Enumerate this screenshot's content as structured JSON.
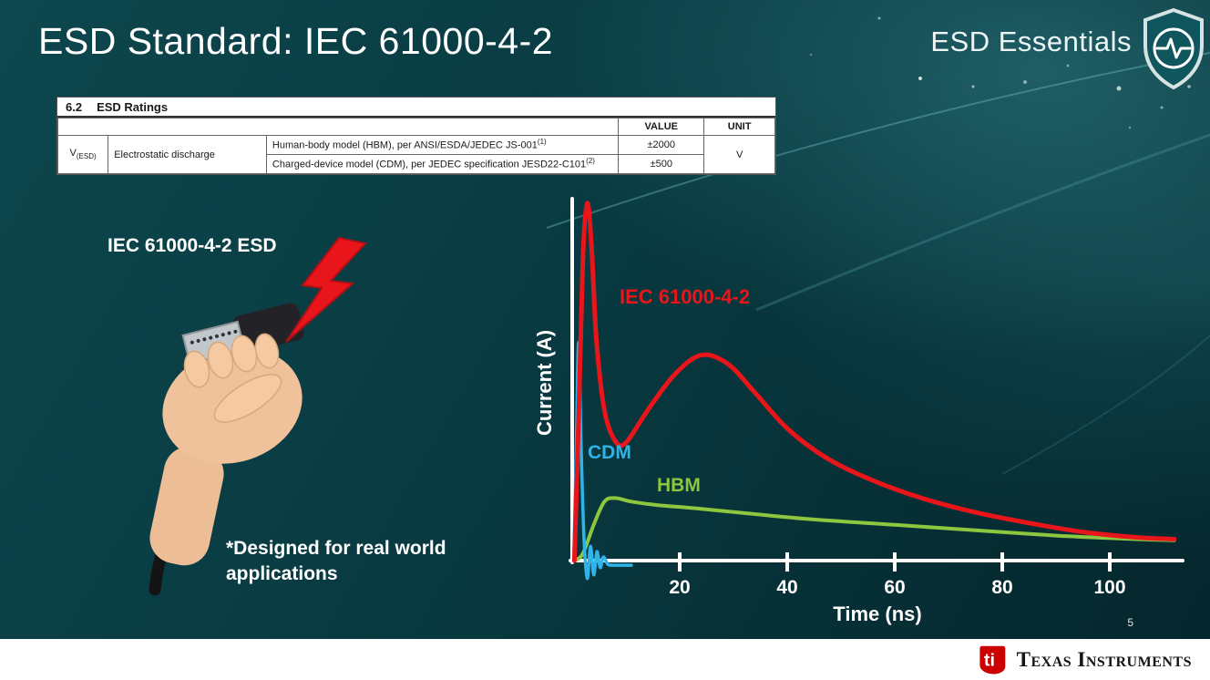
{
  "slide": {
    "title": "ESD Standard: IEC 61000-4-2",
    "series_label": "ESD Essentials",
    "page_number": "5"
  },
  "ratings_table": {
    "section": "6.2",
    "section_title": "ESD Ratings",
    "columns": {
      "value": "VALUE",
      "unit": "UNIT"
    },
    "param": {
      "symbol": "V",
      "subscript": "(ESD)",
      "name": "Electrostatic discharge"
    },
    "rows": [
      {
        "condition": "Human-body model (HBM), per ANSI/ESDA/JEDEC JS-001",
        "footnote_ref": "(1)",
        "value": "±2000"
      },
      {
        "condition": "Charged-device model (CDM), per JEDEC specification JESD22-C101",
        "footnote_ref": "(2)",
        "value": "±500"
      }
    ],
    "unit": "V"
  },
  "illustration": {
    "label": "IEC 61000-4-2 ESD",
    "footnote": "*Designed for real world applications"
  },
  "chart_data": {
    "type": "line",
    "title": "",
    "xlabel": "Time (ns)",
    "ylabel": "Current (A)",
    "x_ticks": [
      20,
      40,
      60,
      80,
      100
    ],
    "xlim": [
      0,
      113
    ],
    "ylim": [
      -8,
      105
    ],
    "y_scale": "relative amplitude (no y tick labels shown)",
    "grid": false,
    "legend": "inline labels on curves",
    "series": [
      {
        "name": "IEC 61000-4-2",
        "color": "#e8151b",
        "width": 5,
        "points": [
          [
            0.4,
            0
          ],
          [
            1.2,
            40
          ],
          [
            2,
            85
          ],
          [
            2.8,
            100
          ],
          [
            3.6,
            88
          ],
          [
            4.5,
            62
          ],
          [
            6,
            42
          ],
          [
            8,
            33.5
          ],
          [
            10,
            33
          ],
          [
            14,
            42
          ],
          [
            19,
            52
          ],
          [
            24,
            57.5
          ],
          [
            29,
            55
          ],
          [
            34,
            47
          ],
          [
            40,
            37
          ],
          [
            47,
            29
          ],
          [
            55,
            23
          ],
          [
            65,
            17.5
          ],
          [
            75,
            13.5
          ],
          [
            85,
            10.5
          ],
          [
            95,
            8
          ],
          [
            105,
            6.5
          ],
          [
            112,
            6
          ]
        ]
      },
      {
        "name": "CDM",
        "color": "#2fb4e9",
        "width": 3.5,
        "points": [
          [
            0.3,
            0
          ],
          [
            0.8,
            35
          ],
          [
            1.2,
            61
          ],
          [
            1.7,
            30
          ],
          [
            2.2,
            6
          ],
          [
            2.8,
            -5
          ],
          [
            3.4,
            4
          ],
          [
            4,
            -4
          ],
          [
            4.6,
            2.5
          ],
          [
            5.2,
            -2
          ],
          [
            5.8,
            1
          ],
          [
            6.6,
            -1
          ],
          [
            7.5,
            -1.3
          ],
          [
            9,
            -1.3
          ],
          [
            11,
            -1.3
          ]
        ]
      },
      {
        "name": "HBM",
        "color": "#8dc63f",
        "width": 4,
        "points": [
          [
            0.5,
            0
          ],
          [
            2,
            2
          ],
          [
            4,
            10
          ],
          [
            6,
            16.5
          ],
          [
            8,
            17.5
          ],
          [
            11,
            16.5
          ],
          [
            16,
            15.5
          ],
          [
            24,
            14.5
          ],
          [
            34,
            13
          ],
          [
            45,
            11.5
          ],
          [
            60,
            10
          ],
          [
            75,
            8.5
          ],
          [
            90,
            7
          ],
          [
            105,
            6
          ],
          [
            112,
            5.7
          ]
        ]
      }
    ]
  },
  "footer": {
    "brand": "Texas Instruments"
  }
}
